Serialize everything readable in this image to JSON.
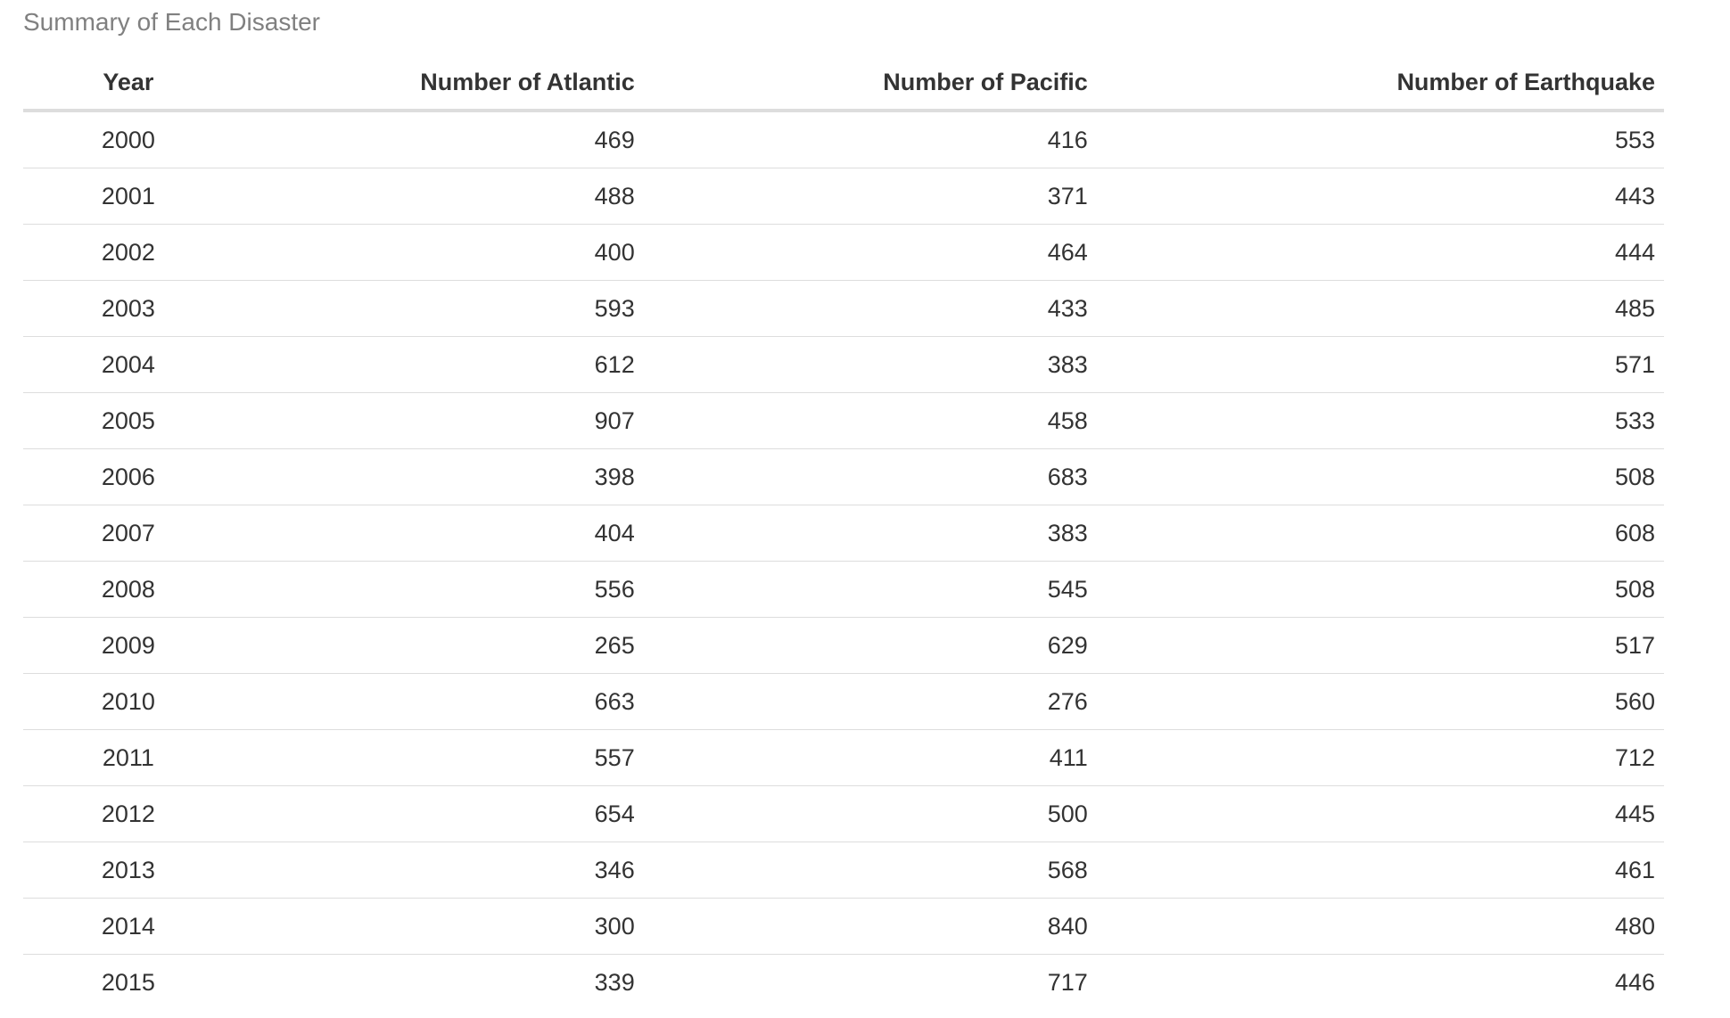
{
  "table": {
    "caption": "Summary of Each Disaster",
    "headers": [
      "Year",
      "Number of Atlantic",
      "Number of Pacific",
      "Number of Earthquake"
    ],
    "rows": [
      [
        "2000",
        "469",
        "416",
        "553"
      ],
      [
        "2001",
        "488",
        "371",
        "443"
      ],
      [
        "2002",
        "400",
        "464",
        "444"
      ],
      [
        "2003",
        "593",
        "433",
        "485"
      ],
      [
        "2004",
        "612",
        "383",
        "571"
      ],
      [
        "2005",
        "907",
        "458",
        "533"
      ],
      [
        "2006",
        "398",
        "683",
        "508"
      ],
      [
        "2007",
        "404",
        "383",
        "608"
      ],
      [
        "2008",
        "556",
        "545",
        "508"
      ],
      [
        "2009",
        "265",
        "629",
        "517"
      ],
      [
        "2010",
        "663",
        "276",
        "560"
      ],
      [
        "2011",
        "557",
        "411",
        "712"
      ],
      [
        "2012",
        "654",
        "500",
        "445"
      ],
      [
        "2013",
        "346",
        "568",
        "461"
      ],
      [
        "2014",
        "300",
        "840",
        "480"
      ],
      [
        "2015",
        "339",
        "717",
        "446"
      ]
    ]
  },
  "colors": {
    "text": "#333333",
    "caption": "#808080",
    "rule": "#dddddd"
  }
}
